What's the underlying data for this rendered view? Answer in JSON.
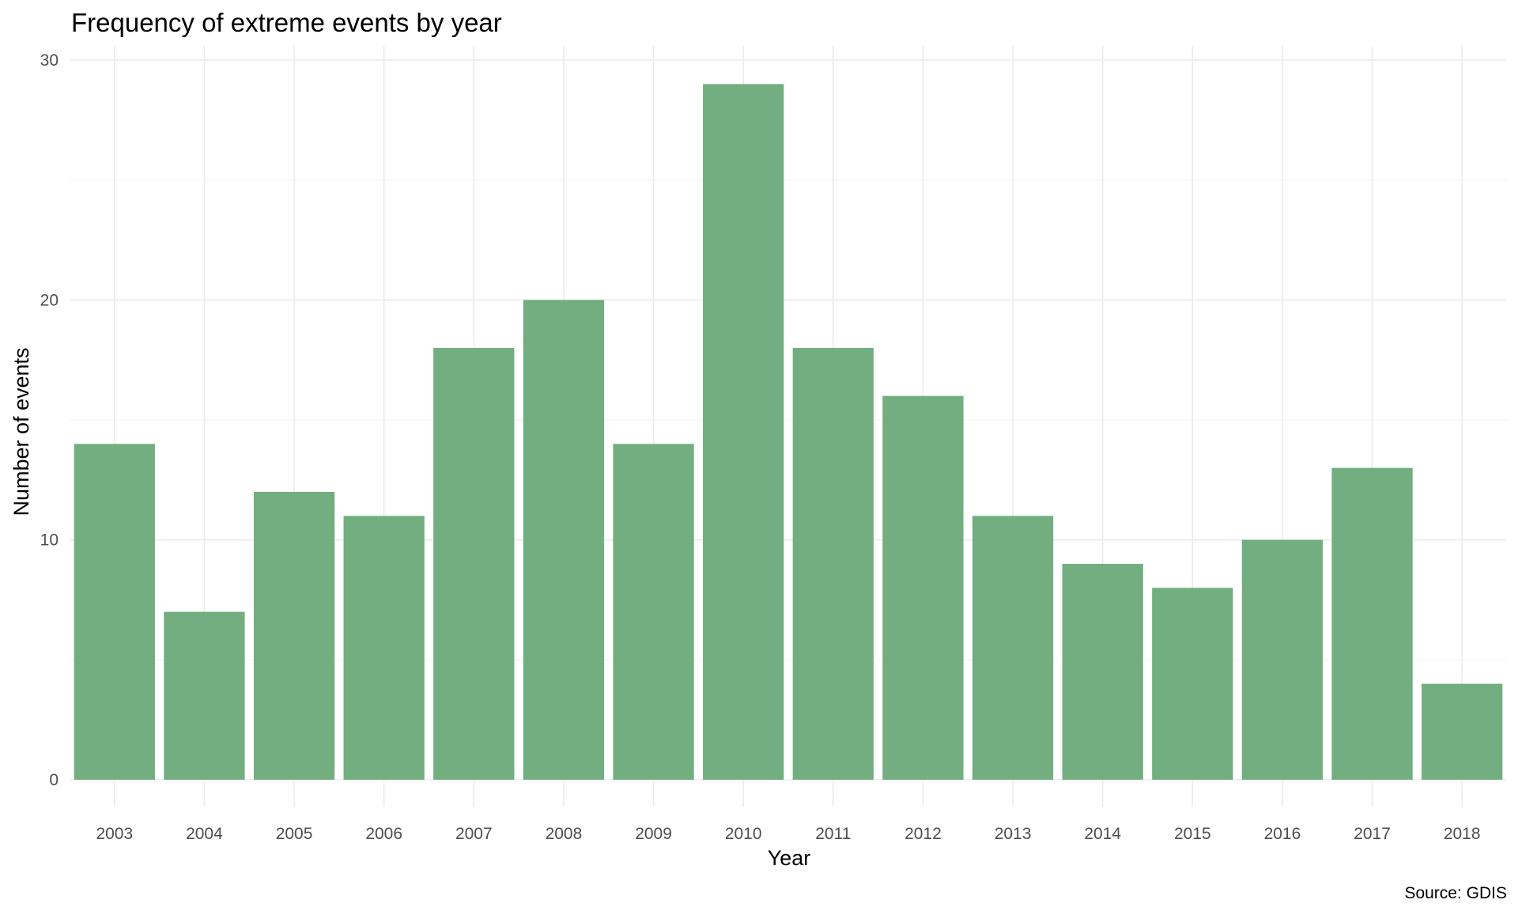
{
  "chart_data": {
    "type": "bar",
    "title": "Frequency of extreme events by year",
    "xlabel": "Year",
    "ylabel": "Number of events",
    "caption": "Source: GDIS",
    "categories": [
      "2003",
      "2004",
      "2005",
      "2006",
      "2007",
      "2008",
      "2009",
      "2010",
      "2011",
      "2012",
      "2013",
      "2014",
      "2015",
      "2016",
      "2017",
      "2018"
    ],
    "values": [
      14,
      7,
      12,
      11,
      18,
      20,
      14,
      29,
      18,
      16,
      11,
      9,
      8,
      10,
      13,
      4
    ],
    "y_ticks": [
      0,
      10,
      20,
      30
    ],
    "ylim": [
      0,
      30
    ],
    "grid": true,
    "legend": "none",
    "bar_color": "#72ae7f"
  }
}
